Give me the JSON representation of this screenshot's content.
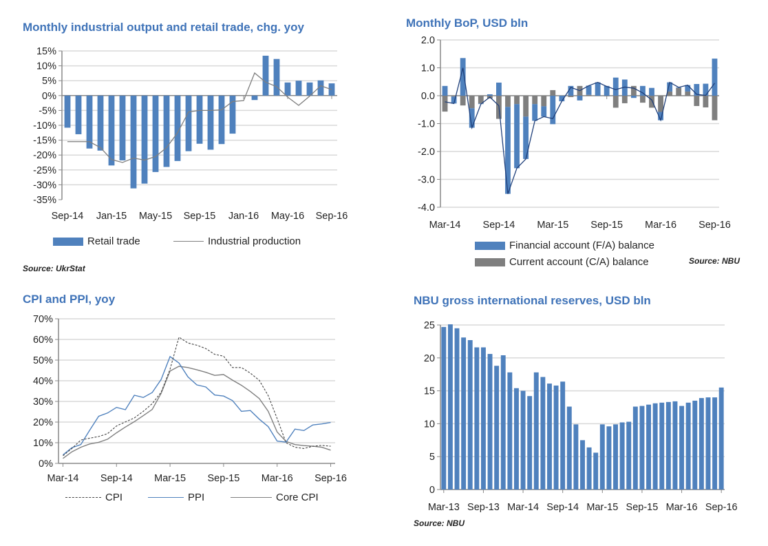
{
  "colors": {
    "title": "#3f73b8",
    "bar_blue": "#4f81bd",
    "bar_gray": "#7f7f7f",
    "line_gray": "#7f7f7f",
    "line_navy": "#1f3f7a",
    "grid": "#d9d9d9"
  },
  "chart_data": [
    {
      "type": "bar",
      "title": "Monthly industrial output and retail trade, chg. yoy",
      "source": "Source: UkrStat",
      "ylim": [
        -35,
        15
      ],
      "ytick_step": 5,
      "ytick_suffix": "%",
      "grid": true,
      "legend": "bottom",
      "categories": [
        "Sep-14",
        "Oct-14",
        "Nov-14",
        "Dec-14",
        "Jan-15",
        "Feb-15",
        "Mar-15",
        "Apr-15",
        "May-15",
        "Jun-15",
        "Jul-15",
        "Aug-15",
        "Sep-15",
        "Oct-15",
        "Nov-15",
        "Dec-15",
        "Jan-16",
        "Feb-16",
        "Mar-16",
        "Apr-16",
        "May-16",
        "Jun-16",
        "Jul-16",
        "Aug-16",
        "Sep-16"
      ],
      "xtick_labels": [
        "Sep-14",
        "Jan-15",
        "May-15",
        "Sep-15",
        "Jan-16",
        "May-16",
        "Sep-16"
      ],
      "series": [
        {
          "name": "Retail trade",
          "kind": "bar",
          "values": [
            -10.8,
            -13.0,
            -17.8,
            -18.5,
            -23.5,
            -21.8,
            -31.2,
            -29.6,
            -25.7,
            -24.0,
            -22.0,
            -18.7,
            -16.2,
            -18.2,
            -16.3,
            -12.8,
            null,
            -1.5,
            13.4,
            12.3,
            4.4,
            5.0,
            4.4,
            5.1,
            4.1
          ]
        },
        {
          "name": "Industrial production",
          "kind": "line",
          "values": [
            -15.5,
            -15.5,
            -15.5,
            -17.5,
            -21.5,
            -22.5,
            -21.0,
            -21.7,
            -20.5,
            -17.5,
            -12.5,
            -5.5,
            -5.0,
            -5.0,
            -4.8,
            -2.0,
            -1.7,
            7.6,
            4.5,
            3.0,
            -0.5,
            -3.3,
            -0.2,
            3.3,
            2.0
          ]
        }
      ]
    },
    {
      "type": "bar",
      "title": "Monthly BoP, USD bln",
      "source": "Source: NBU",
      "ylim": [
        -4.0,
        2.0
      ],
      "ytick_step": 1,
      "grid": true,
      "legend": "bottom",
      "categories": [
        "Mar-14",
        "Apr-14",
        "May-14",
        "Jun-14",
        "Jul-14",
        "Aug-14",
        "Sep-14",
        "Oct-14",
        "Nov-14",
        "Dec-14",
        "Jan-15",
        "Feb-15",
        "Mar-15",
        "Apr-15",
        "May-15",
        "Jun-15",
        "Jul-15",
        "Aug-15",
        "Sep-15",
        "Oct-15",
        "Nov-15",
        "Dec-15",
        "Jan-16",
        "Feb-16",
        "Mar-16",
        "Apr-16",
        "May-16",
        "Jun-16",
        "Jul-16",
        "Aug-16",
        "Sep-16"
      ],
      "xtick_labels": [
        "Mar-14",
        "Sep-14",
        "Mar-15",
        "Sep-15",
        "Mar-16",
        "Sep-16"
      ],
      "series": [
        {
          "name": "Financial account (F/A) balance",
          "kind": "stacked-bar",
          "values": [
            0.35,
            -0.25,
            1.35,
            -0.7,
            -0.02,
            0.05,
            0.47,
            -3.12,
            -2.3,
            -1.52,
            -0.6,
            -0.37,
            -1.02,
            -0.2,
            0.35,
            -0.17,
            0.33,
            0.48,
            0.35,
            0.65,
            0.58,
            -0.08,
            0.35,
            0.28,
            -0.3,
            0.33,
            0.02,
            0.23,
            0.42,
            0.43,
            1.33
          ]
        },
        {
          "name": "Current account (C/A) balance",
          "kind": "stacked-bar",
          "values": [
            -0.57,
            -0.03,
            -0.35,
            -0.45,
            -0.28,
            -0.1,
            -0.83,
            -0.4,
            -0.3,
            -0.75,
            -0.3,
            -0.38,
            0.2,
            0.0,
            -0.05,
            0.35,
            0.03,
            0.0,
            -0.02,
            -0.43,
            -0.27,
            0.35,
            -0.25,
            -0.43,
            -0.58,
            0.15,
            0.28,
            0.15,
            -0.37,
            -0.42,
            -0.88
          ]
        }
      ]
    },
    {
      "type": "line",
      "title": "CPI and PPI, yoy",
      "ylim": [
        0,
        70
      ],
      "ytick_step": 10,
      "ytick_suffix": "%",
      "grid": true,
      "legend": "bottom",
      "categories": [
        "Mar-14",
        "Apr-14",
        "May-14",
        "Jun-14",
        "Jul-14",
        "Aug-14",
        "Sep-14",
        "Oct-14",
        "Nov-14",
        "Dec-14",
        "Jan-15",
        "Feb-15",
        "Mar-15",
        "Apr-15",
        "May-15",
        "Jun-15",
        "Jul-15",
        "Aug-15",
        "Sep-15",
        "Oct-15",
        "Nov-15",
        "Dec-15",
        "Jan-16",
        "Feb-16",
        "Mar-16",
        "Apr-16",
        "May-16",
        "Jun-16",
        "Jul-16",
        "Aug-16",
        "Sep-16"
      ],
      "xtick_labels": [
        "Mar-14",
        "Sep-14",
        "Mar-15",
        "Sep-15",
        "Mar-16",
        "Sep-16"
      ],
      "series": [
        {
          "name": "CPI",
          "style": "dashed",
          "values": [
            3.7,
            7.2,
            11.3,
            12.2,
            13.0,
            14.4,
            18.1,
            20.1,
            22.0,
            25.2,
            28.9,
            34.4,
            45.6,
            61.1,
            58.3,
            57.2,
            55.6,
            52.8,
            51.9,
            46.4,
            46.4,
            43.7,
            40.2,
            32.8,
            21.7,
            10.0,
            7.8,
            7.2,
            8.3,
            8.7,
            8.3
          ]
        },
        {
          "name": "PPI",
          "style": "blue",
          "values": [
            4.1,
            7.6,
            9.1,
            16.1,
            22.8,
            24.4,
            27.1,
            26.0,
            33.0,
            31.9,
            34.3,
            40.6,
            51.7,
            48.6,
            41.9,
            38.0,
            37.0,
            33.1,
            32.6,
            30.4,
            25.2,
            25.6,
            21.4,
            17.8,
            10.8,
            10.3,
            16.6,
            15.9,
            18.6,
            19.1,
            19.8
          ]
        },
        {
          "name": "Core CPI",
          "style": "gray",
          "values": [
            2.4,
            5.6,
            7.8,
            9.4,
            10.2,
            11.7,
            14.8,
            17.6,
            20.2,
            23.1,
            26.1,
            33.9,
            44.7,
            47.0,
            46.4,
            45.3,
            44.1,
            42.6,
            43.0,
            40.3,
            37.8,
            34.8,
            31.4,
            25.2,
            15.2,
            10.6,
            9.1,
            8.6,
            8.3,
            7.8,
            6.4
          ]
        }
      ]
    },
    {
      "type": "bar",
      "title": "NBU gross international reserves, USD bln",
      "source": "Source: NBU",
      "ylim": [
        0,
        25
      ],
      "ytick_step": 5,
      "grid": true,
      "categories": [
        "Mar-13",
        "Apr-13",
        "May-13",
        "Jun-13",
        "Jul-13",
        "Aug-13",
        "Sep-13",
        "Oct-13",
        "Nov-13",
        "Dec-13",
        "Jan-14",
        "Feb-14",
        "Mar-14",
        "Apr-14",
        "May-14",
        "Jun-14",
        "Jul-14",
        "Aug-14",
        "Sep-14",
        "Oct-14",
        "Nov-14",
        "Dec-14",
        "Jan-15",
        "Feb-15",
        "Mar-15",
        "Apr-15",
        "May-15",
        "Jun-15",
        "Jul-15",
        "Aug-15",
        "Sep-15",
        "Oct-15",
        "Nov-15",
        "Dec-15",
        "Jan-16",
        "Feb-16",
        "Mar-16",
        "Apr-16",
        "May-16",
        "Jun-16",
        "Jul-16",
        "Aug-16",
        "Sep-16"
      ],
      "xtick_labels": [
        "Mar-13",
        "Sep-13",
        "Mar-14",
        "Sep-14",
        "Mar-15",
        "Sep-15",
        "Mar-16",
        "Sep-16"
      ],
      "values": [
        24.7,
        25.1,
        24.5,
        23.1,
        22.7,
        21.6,
        21.6,
        20.6,
        18.8,
        20.4,
        17.8,
        15.4,
        15.0,
        14.2,
        17.8,
        17.1,
        16.1,
        15.8,
        16.4,
        12.6,
        9.9,
        7.5,
        6.4,
        5.6,
        9.9,
        9.6,
        9.9,
        10.2,
        10.3,
        12.6,
        12.7,
        12.9,
        13.1,
        13.2,
        13.3,
        13.4,
        12.7,
        13.2,
        13.5,
        13.9,
        14.0,
        14.0,
        15.5
      ]
    }
  ]
}
